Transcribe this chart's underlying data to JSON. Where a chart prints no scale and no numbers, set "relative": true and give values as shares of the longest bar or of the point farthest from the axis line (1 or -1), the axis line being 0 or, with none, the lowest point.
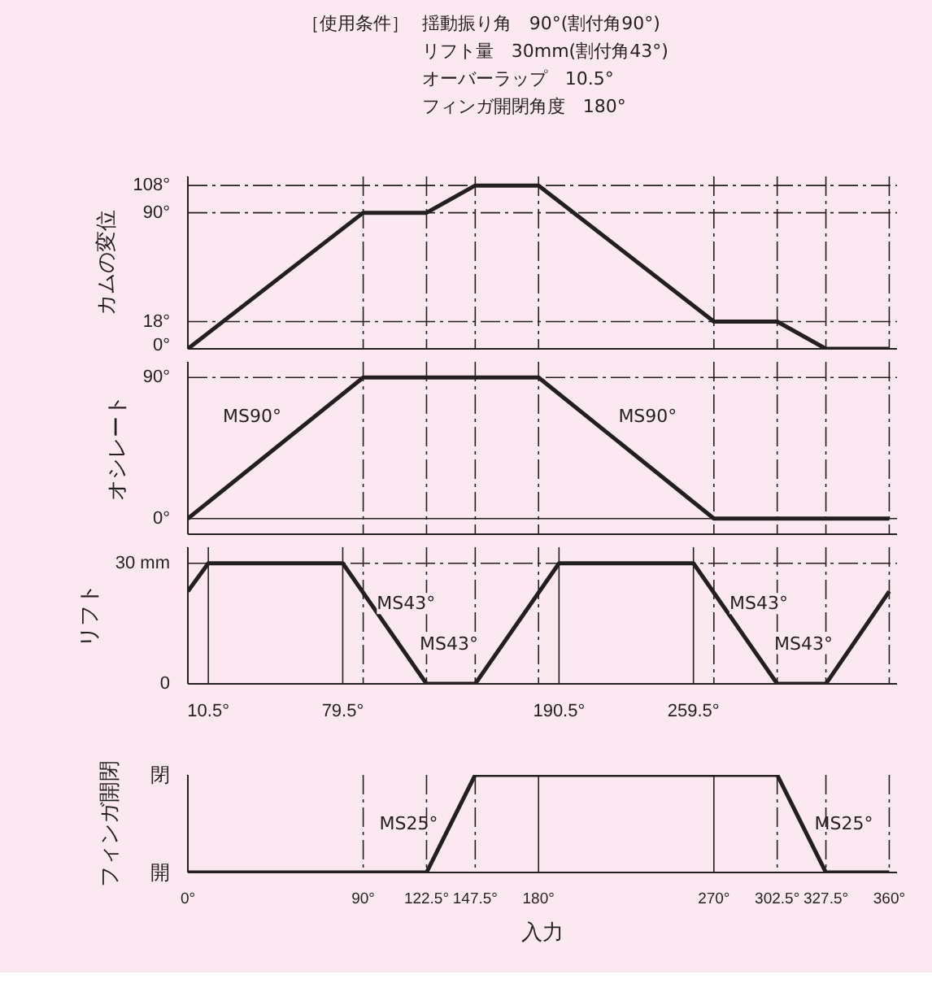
{
  "chart_data": [
    {
      "type": "other",
      "title": "［使用条件］",
      "annotations": [
        "揺動振り角　90°(割付角90°)",
        "リフト量　30mm(割付角43°)",
        "オーバーラップ　10.5°",
        "フィンガ開閉角度　180°"
      ]
    },
    {
      "type": "line",
      "ylabel": "カムの変位",
      "x": [
        0,
        90,
        122.5,
        147.5,
        180,
        270,
        302.5,
        327.5,
        360
      ],
      "series": [
        {
          "color": "#231f20",
          "values": [
            0,
            90,
            90,
            108,
            108,
            18,
            18,
            0,
            0
          ]
        }
      ],
      "xlim": [
        0,
        364
      ],
      "ylim": [
        0,
        114
      ],
      "yticks": [
        {
          "value": 0,
          "label": "0°"
        },
        {
          "value": 18,
          "label": "18°"
        },
        {
          "value": 90,
          "label": "90°"
        },
        {
          "value": 108,
          "label": "108°"
        }
      ],
      "tick_labels": "y",
      "grid": false,
      "ref_lines": [
        {
          "axis": "x",
          "value": 90,
          "line_style": "dashdot"
        },
        {
          "axis": "x",
          "value": 122.5,
          "line_style": "dashdot"
        },
        {
          "axis": "x",
          "value": 147.5,
          "line_style": "dashdot"
        },
        {
          "axis": "x",
          "value": 180,
          "line_style": "dashdot"
        },
        {
          "axis": "x",
          "value": 270,
          "line_style": "dashdot"
        },
        {
          "axis": "x",
          "value": 302.5,
          "line_style": "dashdot"
        },
        {
          "axis": "x",
          "value": 327.5,
          "line_style": "dashdot"
        },
        {
          "axis": "x",
          "value": 360,
          "line_style": "dashdot"
        },
        {
          "axis": "y",
          "value": 108,
          "line_style": "dashdot"
        },
        {
          "axis": "y",
          "value": 90,
          "line_style": "dashdot"
        },
        {
          "axis": "y",
          "value": 18,
          "line_style": "dashdot"
        }
      ]
    },
    {
      "type": "line",
      "ylabel": "オシレート",
      "x": [
        0,
        90,
        180,
        270,
        360
      ],
      "series": [
        {
          "color": "#231f20",
          "values": [
            0,
            90,
            90,
            0,
            0
          ]
        }
      ],
      "xlim": [
        0,
        364
      ],
      "ylim": [
        -10,
        100
      ],
      "yticks": [
        {
          "value": 0,
          "label": "0°"
        },
        {
          "value": 90,
          "label": "90°"
        }
      ],
      "tick_labels": "y",
      "grid": false,
      "annotations": [
        {
          "text": "MS90°",
          "x": 33,
          "y": 65
        },
        {
          "text": "MS90°",
          "x": 236,
          "y": 65
        }
      ],
      "ref_lines": [
        {
          "axis": "x",
          "value": 90,
          "line_style": "dashdot"
        },
        {
          "axis": "x",
          "value": 122.5,
          "line_style": "dashdot"
        },
        {
          "axis": "x",
          "value": 147.5,
          "line_style": "dashdot"
        },
        {
          "axis": "x",
          "value": 180,
          "line_style": "dashdot"
        },
        {
          "axis": "x",
          "value": 270,
          "line_style": "dashdot"
        },
        {
          "axis": "x",
          "value": 302.5,
          "line_style": "dashdot"
        },
        {
          "axis": "x",
          "value": 327.5,
          "line_style": "dashdot"
        },
        {
          "axis": "x",
          "value": 360,
          "line_style": "dashdot"
        },
        {
          "axis": "y",
          "value": 90,
          "line_style": "dashdot"
        },
        {
          "axis": "y",
          "value": 0,
          "line_style": "solid"
        }
      ]
    },
    {
      "type": "line",
      "ylabel": "リフト",
      "x": [
        0,
        10.5,
        79.5,
        122.5,
        147.5,
        190.5,
        259.5,
        302.5,
        327.5,
        360
      ],
      "series": [
        {
          "color": "#231f20",
          "values": [
            23,
            30,
            30,
            0,
            0,
            30,
            30,
            0,
            0,
            23
          ]
        }
      ],
      "xlim": [
        0,
        364
      ],
      "ylim": [
        0,
        34
      ],
      "yticks": [
        0,
        {
          "value": 30,
          "label": "30 mm"
        }
      ],
      "xticks": [
        {
          "value": 10.5,
          "label": "10.5°"
        },
        {
          "value": 79.5,
          "label": "79.5°"
        },
        {
          "value": 190.5,
          "label": "190.5°"
        },
        {
          "value": 259.5,
          "label": "259.5°"
        }
      ],
      "grid": false,
      "annotations": [
        {
          "text": "MS43°",
          "x": 112,
          "y": 20
        },
        {
          "text": "MS43°",
          "x": 134,
          "y": 10
        },
        {
          "text": "MS43°",
          "x": 293,
          "y": 20
        },
        {
          "text": "MS43°",
          "x": 316,
          "y": 10
        }
      ],
      "ref_lines": [
        {
          "axis": "x",
          "value": 10.5,
          "line_style": "solid"
        },
        {
          "axis": "x",
          "value": 79.5,
          "line_style": "solid"
        },
        {
          "axis": "x",
          "value": 190.5,
          "line_style": "solid"
        },
        {
          "axis": "x",
          "value": 259.5,
          "line_style": "solid"
        },
        {
          "axis": "x",
          "value": 90,
          "line_style": "dashdot"
        },
        {
          "axis": "x",
          "value": 122.5,
          "line_style": "dashdot"
        },
        {
          "axis": "x",
          "value": 147.5,
          "line_style": "dashdot"
        },
        {
          "axis": "x",
          "value": 180,
          "line_style": "dashdot"
        },
        {
          "axis": "x",
          "value": 270,
          "line_style": "dashdot"
        },
        {
          "axis": "x",
          "value": 302.5,
          "line_style": "dashdot"
        },
        {
          "axis": "x",
          "value": 327.5,
          "line_style": "dashdot"
        },
        {
          "axis": "x",
          "value": 360,
          "line_style": "dashdot"
        },
        {
          "axis": "y",
          "value": 30,
          "line_style": "dashdot"
        }
      ]
    },
    {
      "type": "line",
      "ylabel": "フィンガ開閉",
      "xlabel": "入力",
      "x": [
        0,
        122.5,
        147.5,
        302.5,
        327.5,
        360
      ],
      "series": [
        {
          "color": "#231f20",
          "values": [
            0,
            0,
            1,
            1,
            0,
            0
          ]
        }
      ],
      "xlim": [
        0,
        364
      ],
      "relative": true,
      "annotations": [
        "閉",
        "開",
        {
          "text": "MS25°",
          "x": 135,
          "y": 0.5
        },
        {
          "text": "MS25°",
          "x": 315,
          "y": 0.5
        }
      ],
      "xticks": [
        {
          "value": 0,
          "label": "0°"
        },
        {
          "value": 90,
          "label": "90°"
        },
        {
          "value": 122.5,
          "label": "122.5°"
        },
        {
          "value": 147.5,
          "label": "147.5°"
        },
        {
          "value": 180,
          "label": "180°"
        },
        {
          "value": 270,
          "label": "270°"
        },
        {
          "value": 302.5,
          "label": "302.5°"
        },
        {
          "value": 327.5,
          "label": "327.5°"
        },
        {
          "value": 360,
          "label": "360°"
        }
      ],
      "grid": false,
      "ref_lines": [
        {
          "axis": "x",
          "value": 90,
          "line_style": "dashdot"
        },
        {
          "axis": "x",
          "value": 122.5,
          "line_style": "dashdot"
        },
        {
          "axis": "x",
          "value": 147.5,
          "line_style": "dashdot"
        },
        {
          "axis": "x",
          "value": 180,
          "line_style": "solid"
        },
        {
          "axis": "x",
          "value": 270,
          "line_style": "solid"
        },
        {
          "axis": "x",
          "value": 302.5,
          "line_style": "dashdot"
        },
        {
          "axis": "x",
          "value": 327.5,
          "line_style": "dashdot"
        },
        {
          "axis": "x",
          "value": 360,
          "line_style": "dashdot"
        }
      ]
    }
  ]
}
